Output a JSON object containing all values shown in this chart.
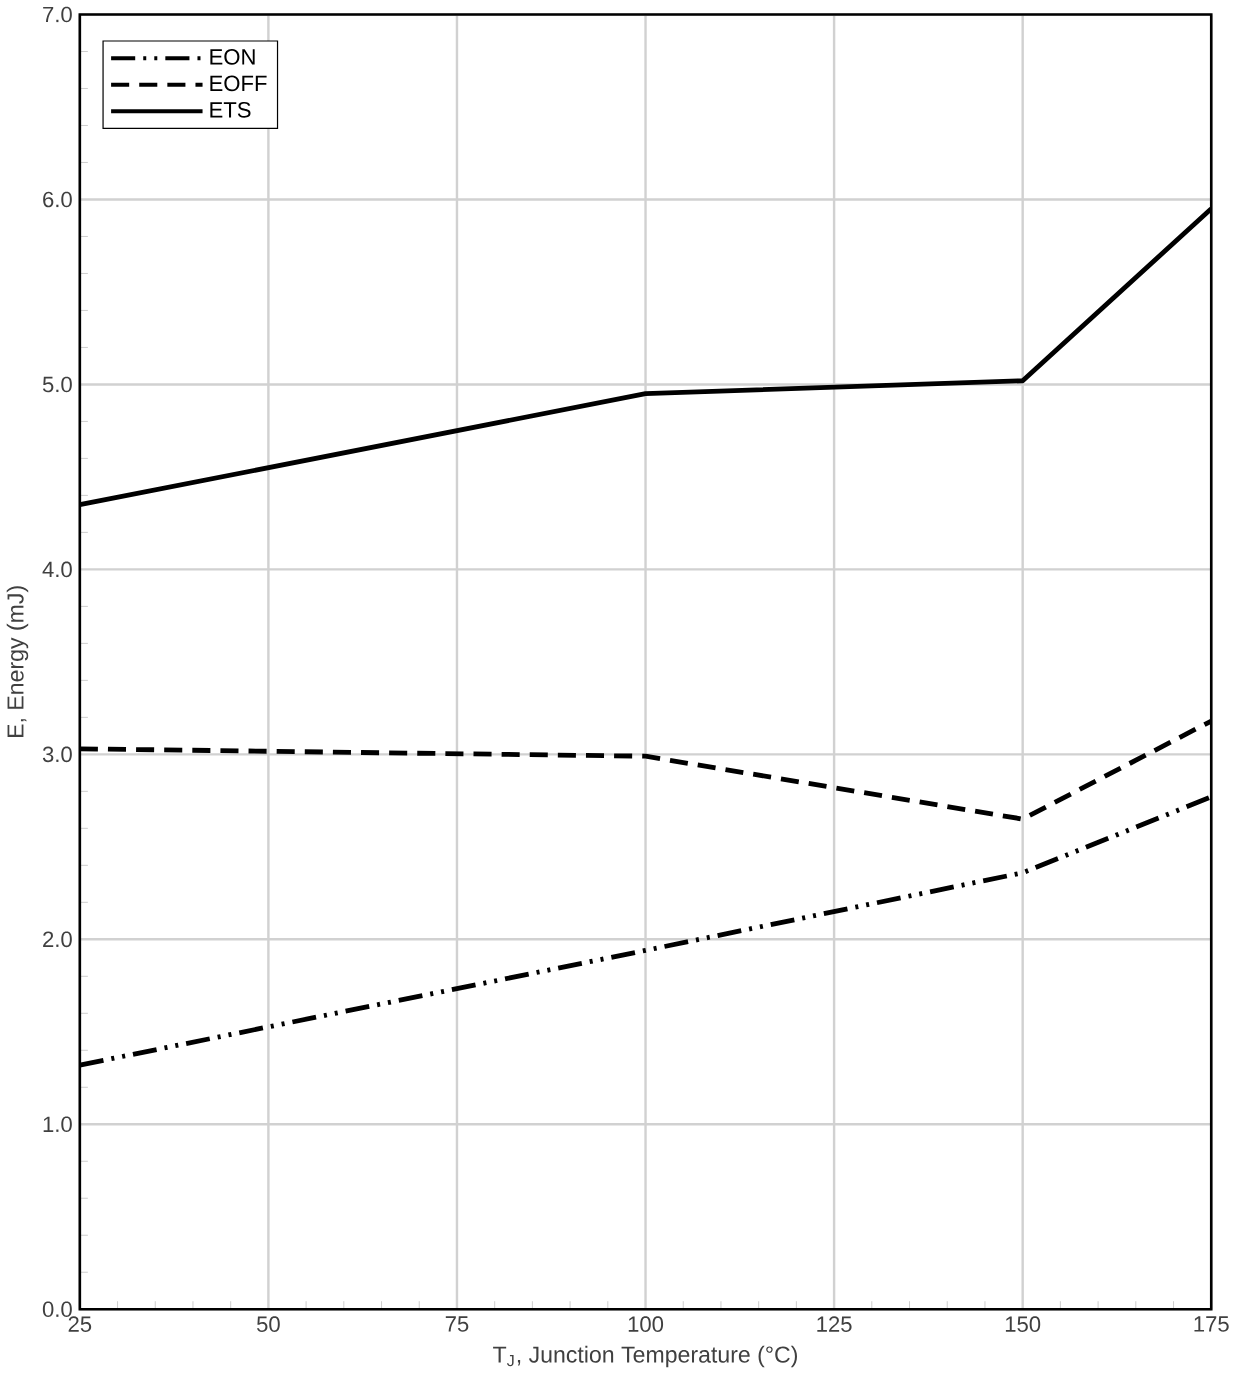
{
  "chart_data": {
    "type": "line",
    "xlabel": "T$_{J}$, Junction Temperature (°C)",
    "ylabel": "E, Energy (mJ)",
    "x": [
      25,
      100,
      150,
      175
    ],
    "series": [
      {
        "name": "EON",
        "color": "#000000",
        "line_style": "dashdotdot",
        "values": [
          1.32,
          1.94,
          2.36,
          2.77
        ]
      },
      {
        "name": "EOFF",
        "color": "#000000",
        "line_style": "dashed",
        "values": [
          3.03,
          2.99,
          2.65,
          3.18
        ]
      },
      {
        "name": "ETS",
        "color": "#000000",
        "line_style": "solid",
        "values": [
          4.35,
          4.95,
          5.02,
          5.95
        ]
      }
    ],
    "xlim": [
      25,
      175
    ],
    "xticks": [
      25,
      50,
      75,
      100,
      125,
      150,
      175
    ],
    "ylim": [
      0,
      7
    ],
    "yticks": [
      {
        "value": 0,
        "label": "0.0"
      },
      {
        "value": 1,
        "label": "1.0"
      },
      {
        "value": 2,
        "label": "2.0"
      },
      {
        "value": 3,
        "label": "3.0"
      },
      {
        "value": 4,
        "label": "4.0"
      },
      {
        "value": 5,
        "label": "5.0"
      },
      {
        "value": 6,
        "label": "6.0"
      },
      {
        "value": 7,
        "label": "7.0"
      }
    ],
    "grid": true,
    "legend": "top left",
    "marker": "none"
  }
}
